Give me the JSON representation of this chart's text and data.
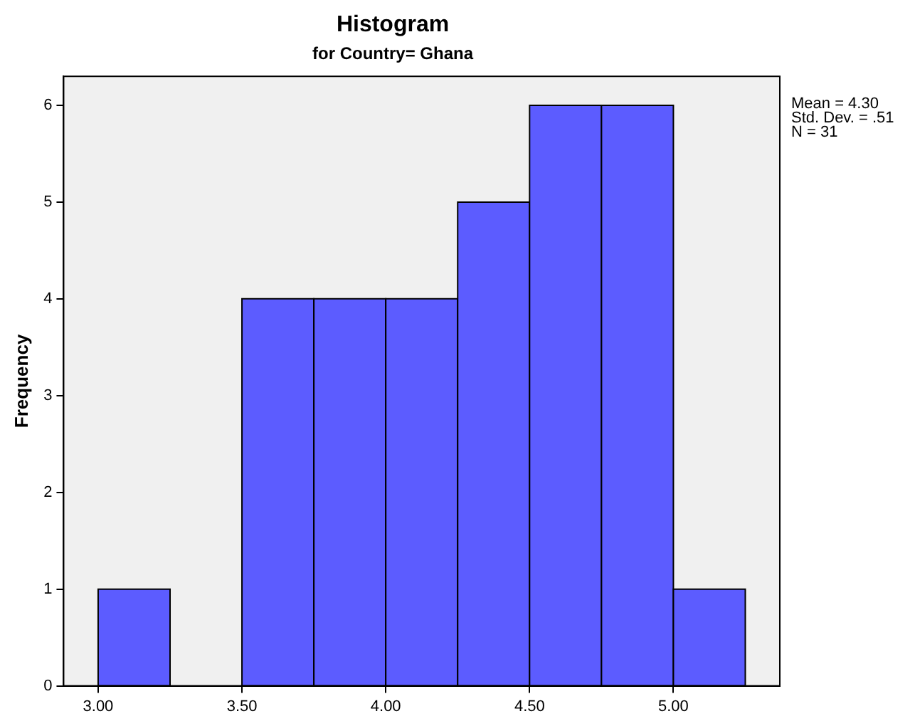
{
  "chart_data": {
    "type": "histogram",
    "title": "Histogram",
    "subtitle": "for Country= Ghana",
    "ylabel": "Frequency",
    "bins": [
      3.0,
      3.25,
      3.5,
      3.75,
      4.0,
      4.25,
      4.5,
      4.75,
      5.0,
      5.25
    ],
    "values": [
      1,
      0,
      4,
      4,
      4,
      5,
      6,
      6,
      1
    ],
    "color": "#5c5cff",
    "xlim": [
      2.88,
      5.37
    ],
    "xticks": [
      {
        "value": 3,
        "label": "3.00"
      },
      {
        "value": 3.5,
        "label": "3.50"
      },
      {
        "value": 4,
        "label": "4.00"
      },
      {
        "value": 4.5,
        "label": "4.50"
      },
      {
        "value": 5,
        "label": "5.00"
      }
    ],
    "ylim": [
      0,
      6.3
    ],
    "yticks": [
      0,
      1,
      2,
      3,
      4,
      5,
      6
    ],
    "grid": false,
    "annotations": [
      "Mean = 4.30",
      "Std. Dev. = .51",
      "N = 31"
    ]
  }
}
